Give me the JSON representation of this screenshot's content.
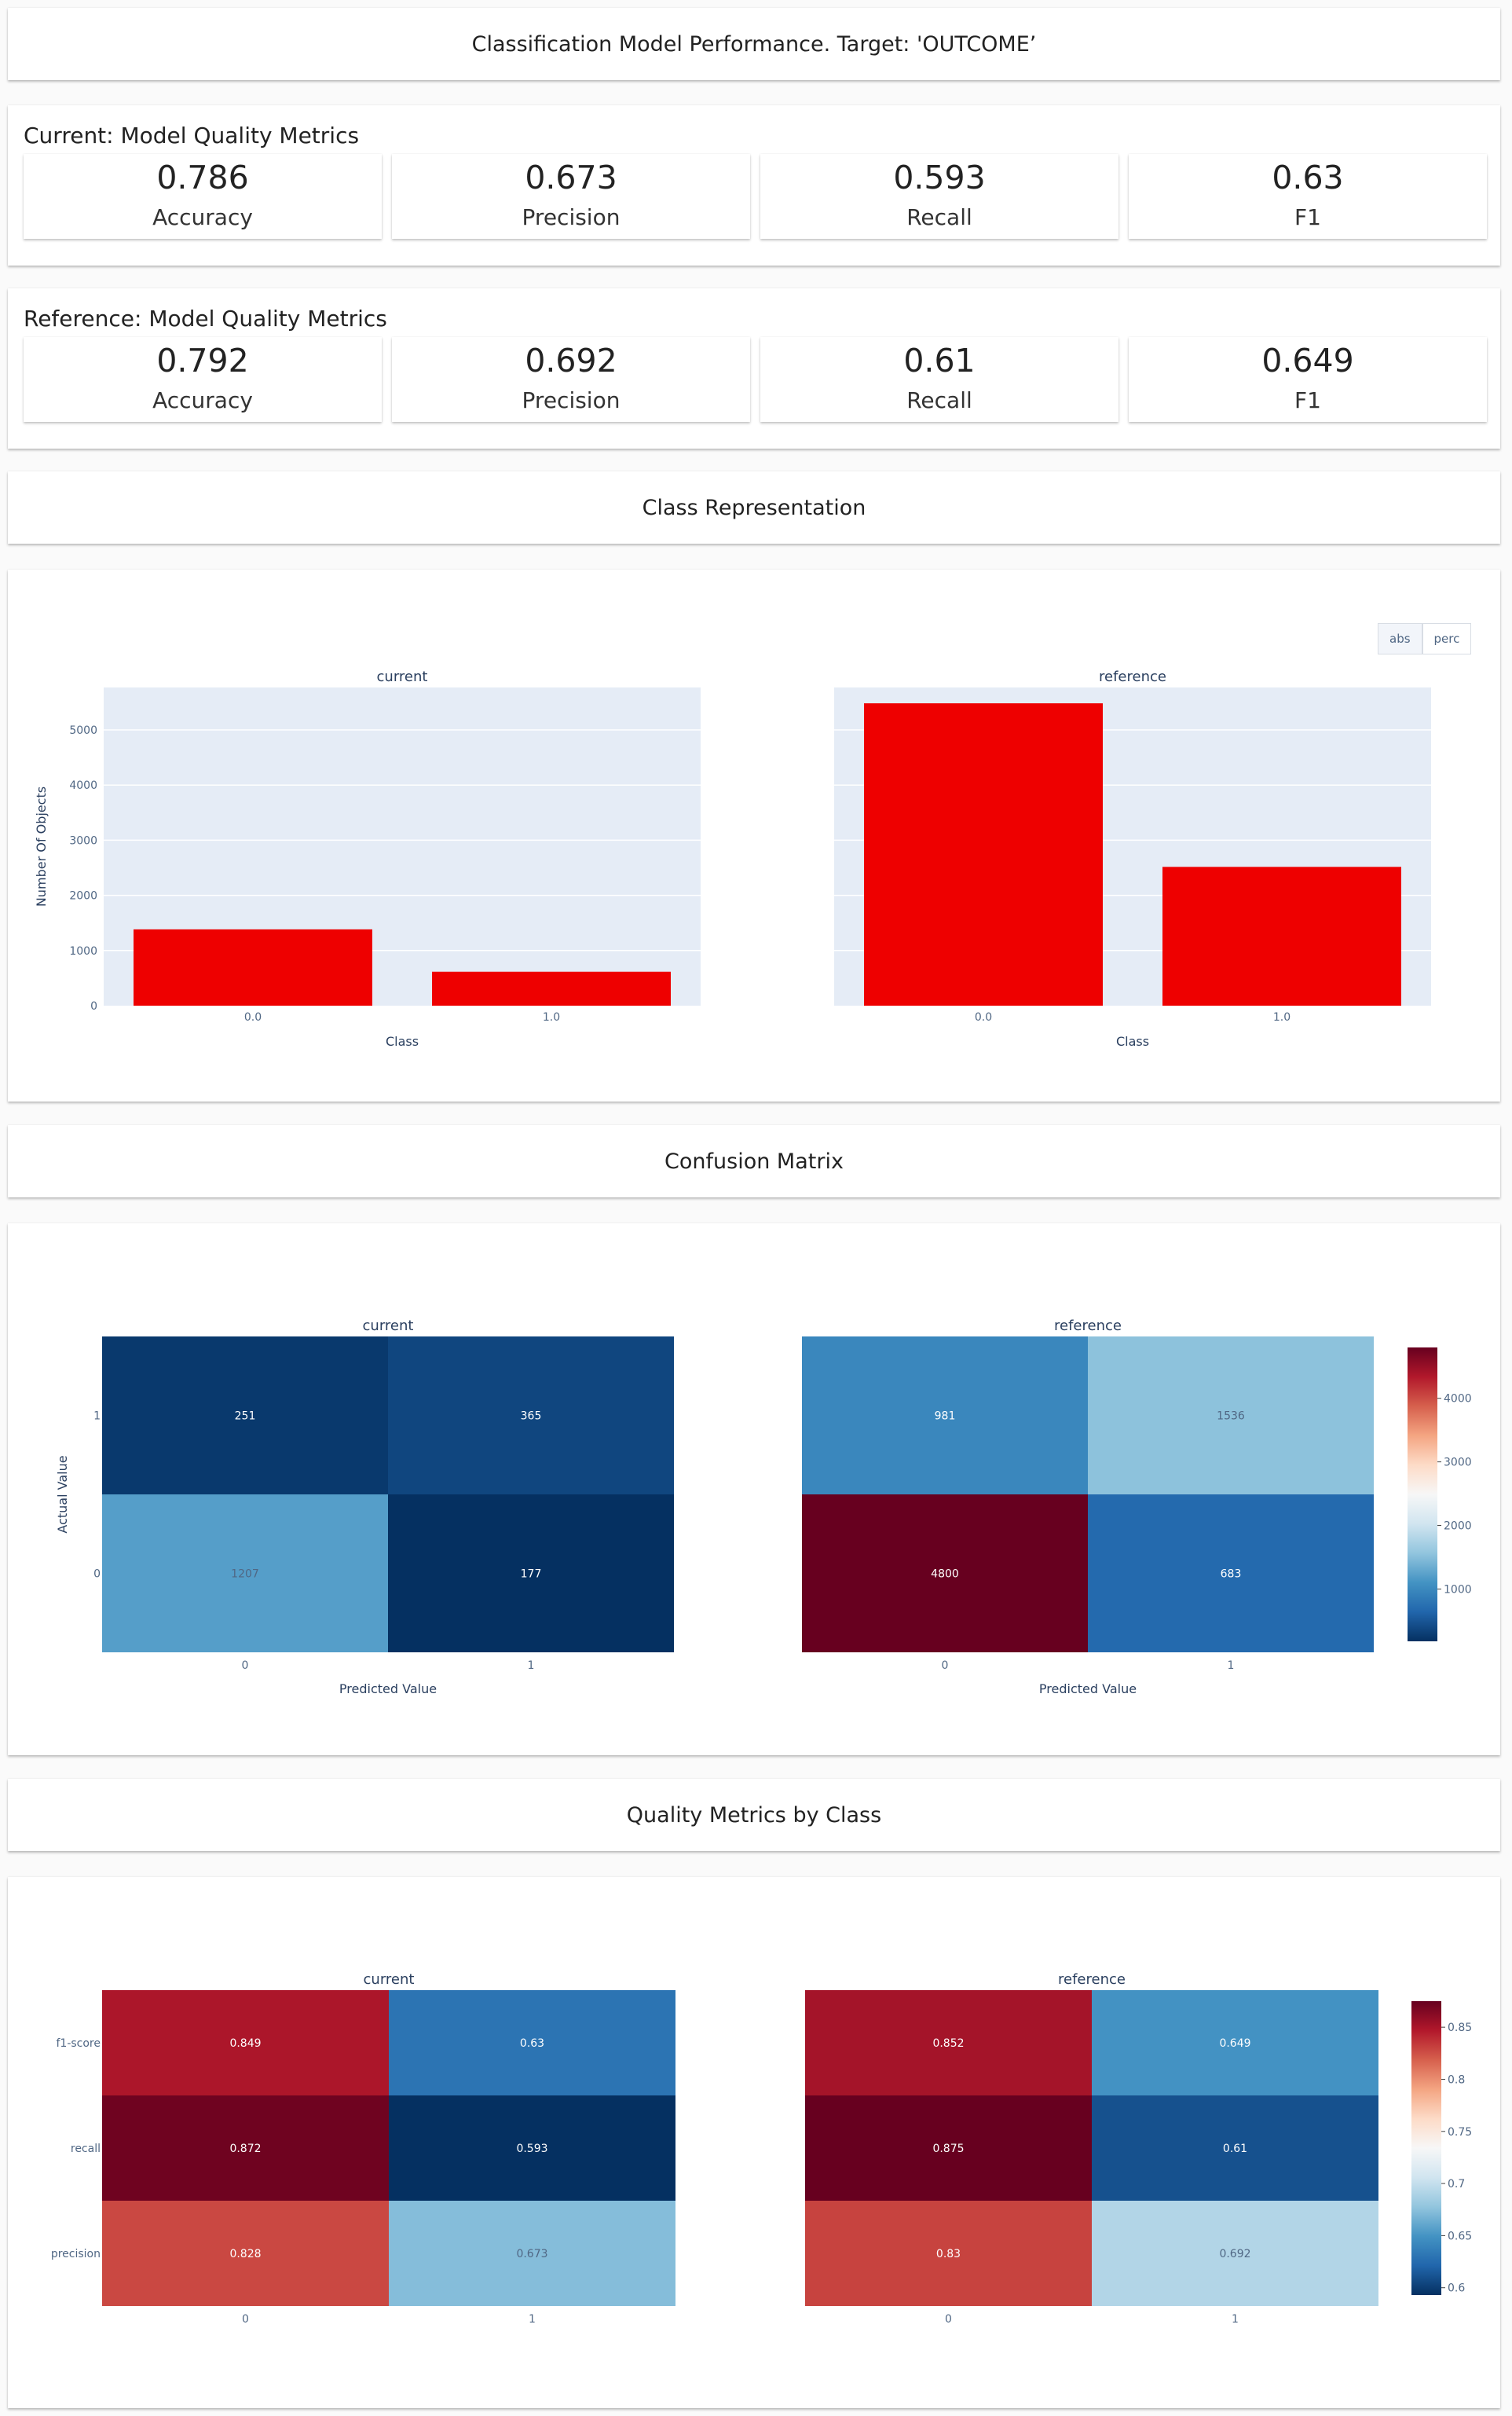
{
  "header": {
    "title": "Classification Model Performance. Target: 'OUTCOME’"
  },
  "current_metrics": {
    "title": "Current: Model Quality Metrics",
    "tiles": [
      {
        "value": "0.786",
        "label": "Accuracy"
      },
      {
        "value": "0.673",
        "label": "Precision"
      },
      {
        "value": "0.593",
        "label": "Recall"
      },
      {
        "value": "0.63",
        "label": "F1"
      }
    ]
  },
  "reference_metrics": {
    "title": "Reference: Model Quality Metrics",
    "tiles": [
      {
        "value": "0.792",
        "label": "Accuracy"
      },
      {
        "value": "0.692",
        "label": "Precision"
      },
      {
        "value": "0.61",
        "label": "Recall"
      },
      {
        "value": "0.649",
        "label": "F1"
      }
    ]
  },
  "class_representation": {
    "title": "Class Representation",
    "buttons": [
      {
        "label": "abs",
        "active": true
      },
      {
        "label": "perc",
        "active": false
      }
    ]
  },
  "confusion_matrix": {
    "title": "Confusion Matrix"
  },
  "quality_by_class": {
    "title": "Quality Metrics by Class"
  },
  "colors": {
    "bar": "#ee0000",
    "plot_bg": "#e5ecf6",
    "axis_text": "#506784"
  },
  "chart_data": [
    {
      "type": "bar",
      "subplot_titles": [
        "current",
        "reference"
      ],
      "categories": [
        "0.0",
        "1.0"
      ],
      "series": [
        {
          "values": [
            1384,
            616
          ]
        },
        {
          "values": [
            5483,
            2517
          ]
        }
      ],
      "xlabel": "Class",
      "ylabel": "Number Of Objects",
      "ylim": [
        0,
        5770
      ],
      "yticks": [
        0,
        1000,
        2000,
        3000,
        4000,
        5000
      ],
      "grid": true
    },
    {
      "type": "heatmap",
      "subplot_titles": [
        "current",
        "reference"
      ],
      "x_categories": [
        "0",
        "1"
      ],
      "y_categories": [
        "1",
        "0"
      ],
      "matrices": [
        [
          [
            251,
            365
          ],
          [
            1207,
            177
          ]
        ],
        [
          [
            981,
            1536
          ],
          [
            4800,
            683
          ]
        ]
      ],
      "xlabel": "Predicted Value",
      "ylabel": "Actual Value",
      "zrange": [
        177,
        4800
      ],
      "colorbar_ticks": [
        1000,
        2000,
        3000,
        4000
      ],
      "colorscale": "RdBu"
    },
    {
      "type": "heatmap",
      "subplot_titles": [
        "current",
        "reference"
      ],
      "x_categories": [
        "0",
        "1"
      ],
      "y_categories": [
        "f1-score",
        "recall",
        "precision"
      ],
      "matrices": [
        [
          [
            0.849,
            0.63
          ],
          [
            0.872,
            0.593
          ],
          [
            0.828,
            0.673
          ]
        ],
        [
          [
            0.852,
            0.649
          ],
          [
            0.875,
            0.61
          ],
          [
            0.83,
            0.692
          ]
        ]
      ],
      "zrange": [
        0.593,
        0.875
      ],
      "colorbar_ticks": [
        0.6,
        0.65,
        0.7,
        0.75,
        0.8,
        0.85
      ],
      "colorscale": "RdBu"
    }
  ]
}
